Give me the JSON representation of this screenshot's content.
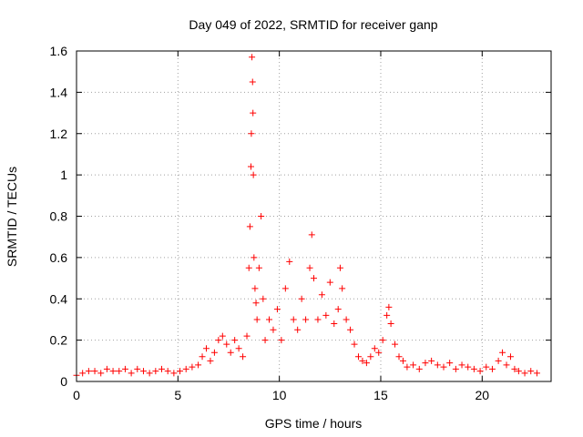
{
  "chart_data": {
    "type": "scatter",
    "title": "Day 049 of 2022, SRMTID for receiver ganp",
    "xlabel": "GPS time / hours",
    "ylabel": "SRMTID / TECUs",
    "xlim": [
      0,
      23.4
    ],
    "ylim": [
      0,
      1.6
    ],
    "xticks": [
      0,
      5,
      10,
      15,
      20
    ],
    "xtick_labels": [
      "0",
      "5",
      "10",
      "15",
      "20"
    ],
    "yticks": [
      0,
      0.2,
      0.4,
      0.6,
      0.8,
      1,
      1.2,
      1.4,
      1.6
    ],
    "ytick_labels": [
      "0",
      "0.2",
      "0.4",
      "0.6",
      "0.8",
      "1",
      "1.2",
      "1.4",
      "1.6"
    ],
    "grid": true,
    "marker": "plus",
    "series": [
      {
        "name": "SRMTID",
        "color": "#ff0000",
        "x": [
          0.0,
          0.3,
          0.6,
          0.9,
          1.2,
          1.5,
          1.8,
          2.1,
          2.4,
          2.7,
          3.0,
          3.3,
          3.6,
          3.9,
          4.2,
          4.5,
          4.8,
          5.1,
          5.4,
          5.7,
          6.0,
          6.2,
          6.4,
          6.6,
          6.8,
          7.0,
          7.2,
          7.4,
          7.6,
          7.8,
          8.0,
          8.2,
          8.4,
          8.5,
          8.55,
          8.6,
          8.62,
          8.65,
          8.68,
          8.7,
          8.72,
          8.75,
          8.8,
          8.85,
          8.9,
          9.0,
          9.1,
          9.2,
          9.3,
          9.5,
          9.7,
          9.9,
          10.1,
          10.3,
          10.5,
          10.7,
          10.9,
          11.1,
          11.3,
          11.5,
          11.6,
          11.7,
          11.9,
          12.1,
          12.3,
          12.5,
          12.7,
          12.9,
          13.0,
          13.1,
          13.3,
          13.5,
          13.7,
          13.9,
          14.1,
          14.3,
          14.5,
          14.7,
          14.9,
          15.1,
          15.3,
          15.4,
          15.5,
          15.7,
          15.9,
          16.1,
          16.3,
          16.6,
          16.9,
          17.2,
          17.5,
          17.8,
          18.1,
          18.4,
          18.7,
          19.0,
          19.3,
          19.6,
          19.9,
          20.2,
          20.5,
          20.8,
          21.0,
          21.2,
          21.4,
          21.6,
          21.8,
          22.1,
          22.4,
          22.7
        ],
        "y": [
          0.03,
          0.04,
          0.05,
          0.05,
          0.04,
          0.06,
          0.05,
          0.05,
          0.06,
          0.04,
          0.06,
          0.05,
          0.04,
          0.05,
          0.06,
          0.05,
          0.04,
          0.05,
          0.06,
          0.07,
          0.08,
          0.12,
          0.16,
          0.1,
          0.14,
          0.2,
          0.22,
          0.18,
          0.14,
          0.2,
          0.16,
          0.12,
          0.22,
          0.55,
          0.75,
          1.04,
          1.2,
          1.57,
          1.45,
          1.3,
          1.0,
          0.6,
          0.45,
          0.38,
          0.3,
          0.55,
          0.8,
          0.4,
          0.2,
          0.3,
          0.25,
          0.35,
          0.2,
          0.45,
          0.58,
          0.3,
          0.25,
          0.4,
          0.3,
          0.55,
          0.71,
          0.5,
          0.3,
          0.42,
          0.32,
          0.48,
          0.28,
          0.35,
          0.55,
          0.45,
          0.3,
          0.25,
          0.18,
          0.12,
          0.1,
          0.09,
          0.12,
          0.16,
          0.14,
          0.2,
          0.32,
          0.36,
          0.28,
          0.18,
          0.12,
          0.1,
          0.07,
          0.08,
          0.06,
          0.09,
          0.1,
          0.08,
          0.07,
          0.09,
          0.06,
          0.08,
          0.07,
          0.06,
          0.05,
          0.07,
          0.06,
          0.1,
          0.14,
          0.08,
          0.12,
          0.06,
          0.05,
          0.04,
          0.05,
          0.04
        ]
      }
    ]
  }
}
